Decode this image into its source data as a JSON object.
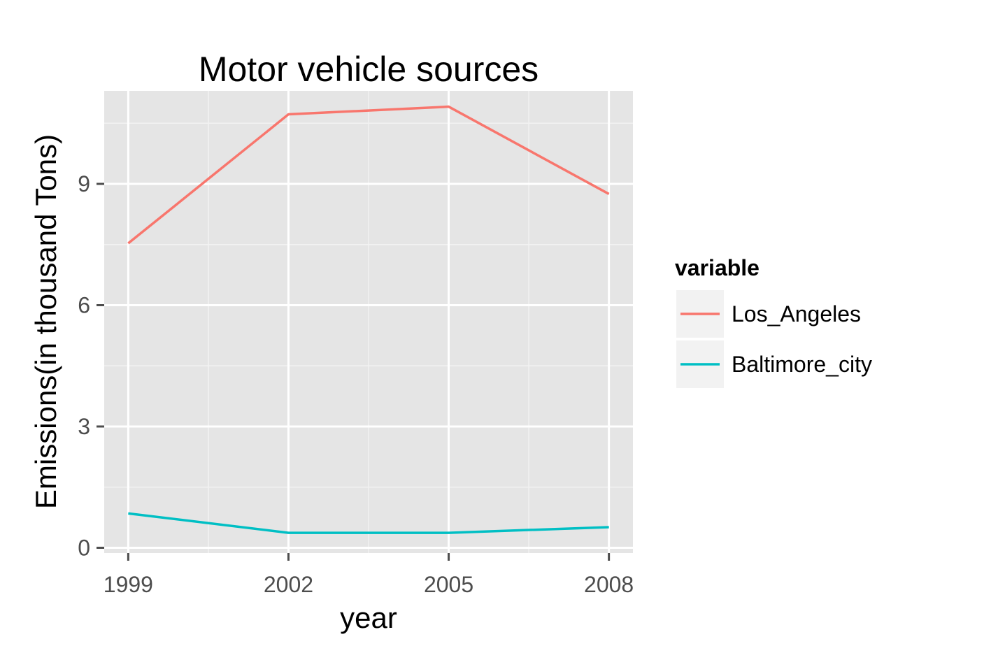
{
  "chart_data": {
    "type": "line",
    "title": "Motor vehicle sources",
    "xlabel": "year",
    "ylabel": "Emissions(in thousand Tons)",
    "x": [
      1999,
      2002,
      2005,
      2008
    ],
    "x_ticks": [
      "1999",
      "2002",
      "2005",
      "2008"
    ],
    "xlim": [
      1998.55,
      2008.45
    ],
    "y_ticks": [
      "0",
      "3",
      "6",
      "9"
    ],
    "ylim": [
      -0.13,
      11.3
    ],
    "grid": true,
    "legend": {
      "title": "variable",
      "placement": "right"
    },
    "series": [
      {
        "name": "Los_Angeles",
        "color": "#F8766D",
        "values": [
          7.53,
          10.72,
          10.91,
          8.75
        ]
      },
      {
        "name": "Baltimore_city",
        "color": "#00BFC4",
        "values": [
          0.85,
          0.37,
          0.37,
          0.51
        ]
      }
    ]
  },
  "colors": {
    "panel_background": "#E5E5E5",
    "grid_major": "#FFFFFF",
    "grid_minor": "#F2F2F2",
    "legend_key_background": "#F2F2F2"
  }
}
